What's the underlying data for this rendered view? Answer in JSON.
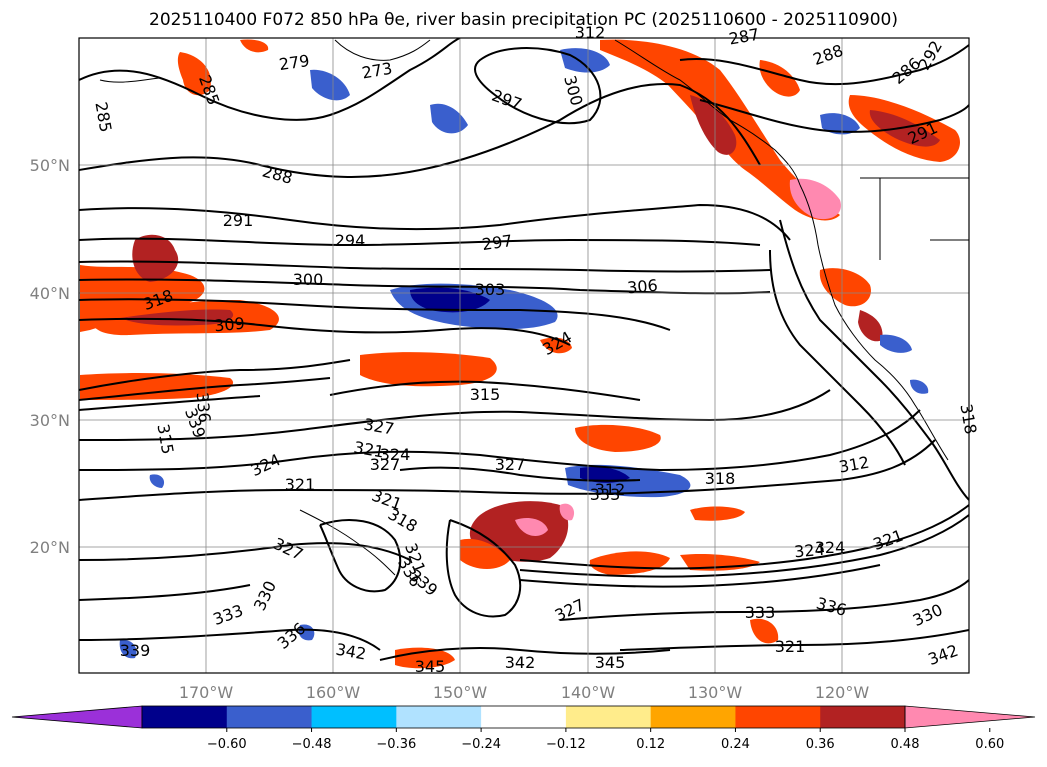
{
  "title_text": "2025110400 F072 850 hPa θe, river basin precipitation PC (2025110600 - 2025110900)",
  "lat_ticks": [
    "50°N",
    "40°N",
    "30°N",
    "20°N"
  ],
  "lon_ticks": [
    "170°W",
    "160°W",
    "150°W",
    "140°W",
    "130°W",
    "120°W"
  ],
  "colorbar": {
    "ticks": [
      "−0.60",
      "−0.48",
      "−0.36",
      "−0.24",
      "−0.12",
      "0.12",
      "0.24",
      "0.36",
      "0.48",
      "0.60"
    ],
    "colors": [
      "#9b30d9",
      "#00008b",
      "#3a5fcd",
      "#00bfff",
      "#b0e2ff",
      "#ffffff",
      "#ffec8b",
      "#ffa500",
      "#ff4500",
      "#b22222",
      "#ff89b0"
    ]
  },
  "contour_labels": [
    "279",
    "273",
    "285",
    "285",
    "288",
    "291",
    "294",
    "297",
    "300",
    "297",
    "300",
    "303",
    "306",
    "309",
    "312",
    "315",
    "318",
    "321",
    "324",
    "327",
    "330",
    "333",
    "336",
    "339",
    "342",
    "345",
    "287",
    "288",
    "286",
    "292",
    "291",
    "318",
    "324",
    "318",
    "327",
    "321",
    "324",
    "327",
    "324",
    "321",
    "327",
    "336",
    "333",
    "330",
    "321",
    "342",
    "339",
    "345",
    "321",
    "318",
    "324",
    "312",
    "315",
    "321",
    "327",
    "336",
    "312",
    "336",
    "339",
    "342",
    "333"
  ]
}
